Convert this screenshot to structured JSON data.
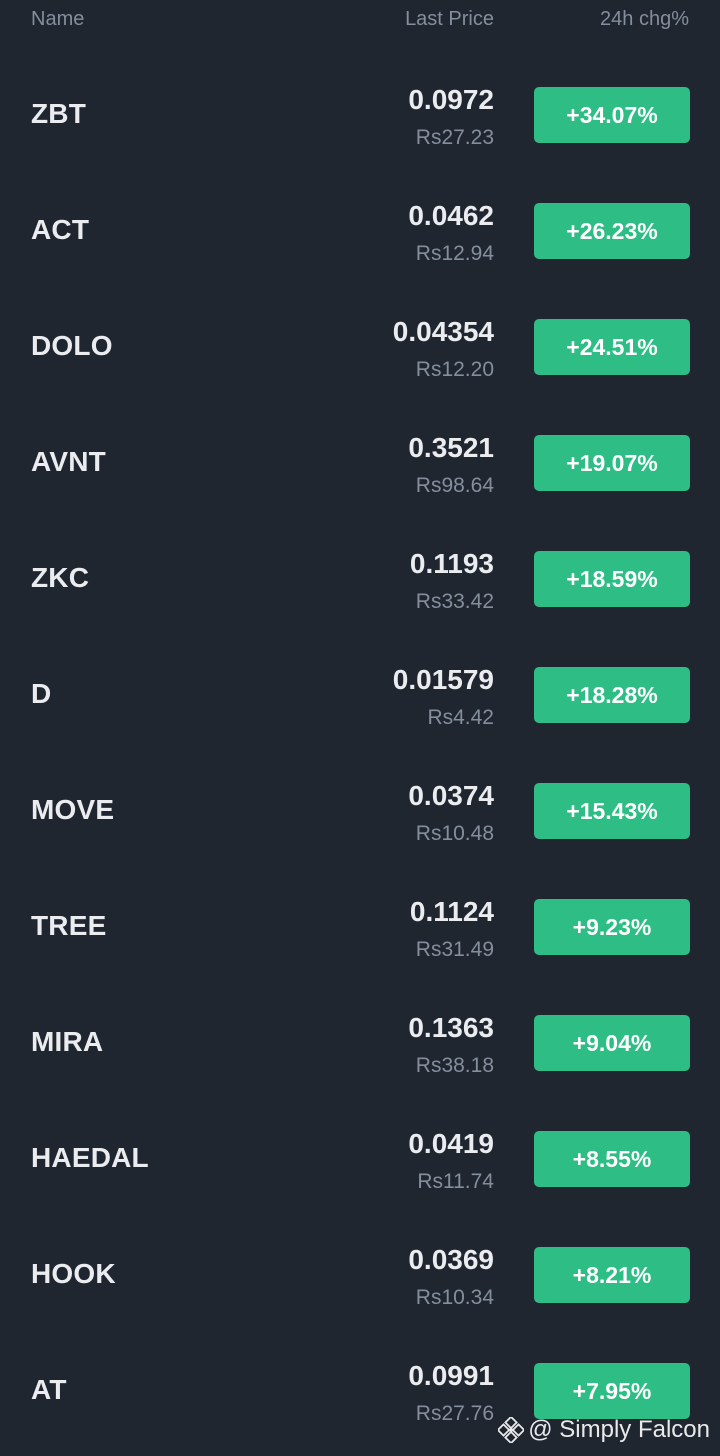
{
  "header": {
    "name_label": "Name",
    "price_label": "Last Price",
    "change_label": "24h chg%"
  },
  "rows": [
    {
      "symbol": "ZBT",
      "price": "0.0972",
      "fiat": "Rs27.23",
      "change": "+34.07%"
    },
    {
      "symbol": "ACT",
      "price": "0.0462",
      "fiat": "Rs12.94",
      "change": "+26.23%"
    },
    {
      "symbol": "DOLO",
      "price": "0.04354",
      "fiat": "Rs12.20",
      "change": "+24.51%"
    },
    {
      "symbol": "AVNT",
      "price": "0.3521",
      "fiat": "Rs98.64",
      "change": "+19.07%"
    },
    {
      "symbol": "ZKC",
      "price": "0.1193",
      "fiat": "Rs33.42",
      "change": "+18.59%"
    },
    {
      "symbol": "D",
      "price": "0.01579",
      "fiat": "Rs4.42",
      "change": "+18.28%"
    },
    {
      "symbol": "MOVE",
      "price": "0.0374",
      "fiat": "Rs10.48",
      "change": "+15.43%"
    },
    {
      "symbol": "TREE",
      "price": "0.1124",
      "fiat": "Rs31.49",
      "change": "+9.23%"
    },
    {
      "symbol": "MIRA",
      "price": "0.1363",
      "fiat": "Rs38.18",
      "change": "+9.04%"
    },
    {
      "symbol": "HAEDAL",
      "price": "0.0419",
      "fiat": "Rs11.74",
      "change": "+8.55%"
    },
    {
      "symbol": "HOOK",
      "price": "0.0369",
      "fiat": "Rs10.34",
      "change": "+8.21%"
    },
    {
      "symbol": "AT",
      "price": "0.0991",
      "fiat": "Rs27.76",
      "change": "+7.95%"
    }
  ],
  "watermark": {
    "icon": "binance-logo-icon",
    "text": "@ Simply Falcon"
  },
  "colors": {
    "background": "#1f2630",
    "positive": "#2ebd85",
    "muted": "#848e9c",
    "text": "#eaecef"
  }
}
